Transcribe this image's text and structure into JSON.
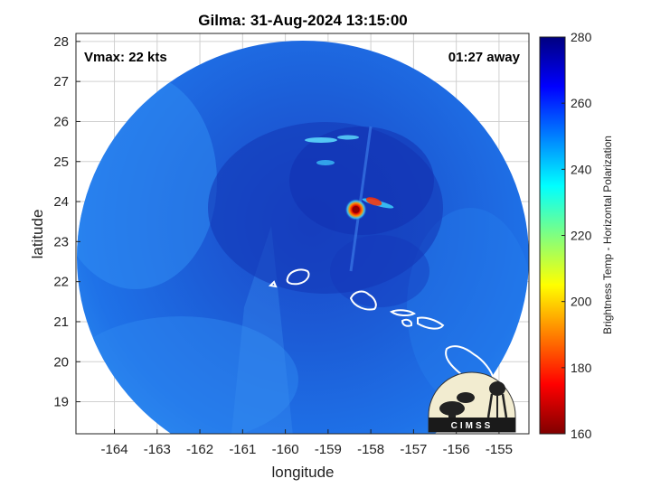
{
  "chart_data": {
    "type": "heatmap",
    "title": "Gilma: 31-Aug-2024 13:15:00",
    "xlabel": "longitude",
    "ylabel": "latitude",
    "xlim": [
      -164.9,
      -154.3
    ],
    "ylim": [
      18.2,
      28.2
    ],
    "xticks": [
      -164,
      -163,
      -162,
      -161,
      -160,
      -159,
      -158,
      -157,
      -156,
      -155
    ],
    "yticks": [
      19,
      20,
      21,
      22,
      23,
      24,
      25,
      26,
      27,
      28
    ],
    "grid": true,
    "annotations": {
      "left": "Vmax: 22 kts",
      "right": "01:27 away"
    },
    "storm_center": {
      "lon": -158.35,
      "lat": 23.8
    },
    "colorbar": {
      "label": "Brightness Temp - Horizontal Polarization",
      "min": 160,
      "max": 280,
      "ticks": [
        160,
        180,
        200,
        220,
        240,
        260,
        280
      ],
      "colormap": "jet"
    }
  },
  "logo": {
    "text": "CIMSS"
  },
  "colors": {
    "background_field": "#1e6ee6",
    "core": "#b00000",
    "coast": "#ffffff",
    "grid": "#d0d0d0"
  }
}
